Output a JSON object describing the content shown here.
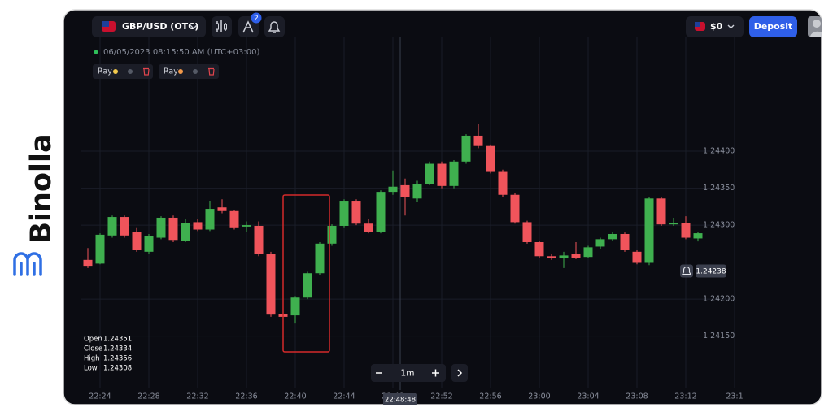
{
  "brand": "Binolla",
  "toolbar": {
    "symbol": "GBP/USD (OTC)",
    "indicator_badge": "2",
    "balance": "$0",
    "deposit": "Deposit"
  },
  "info": {
    "timestamp": "06/05/2023 08:15:50 AM",
    "timezone": "(UTC+03:00)"
  },
  "drawings": [
    {
      "label": "Ray"
    },
    {
      "label": "Ray"
    }
  ],
  "ohlc": [
    {
      "label": "Open",
      "value": "1.24351"
    },
    {
      "label": "Close",
      "value": "1.24334"
    },
    {
      "label": "High",
      "value": "1.24356"
    },
    {
      "label": "Low",
      "value": "1.24308"
    }
  ],
  "timeframe": {
    "label": "1m"
  },
  "chart_data": {
    "type": "candlestick",
    "up_color": "#3fb04f",
    "down_color": "#f0545b",
    "grid": true,
    "categories": [
      null,
      "22:24",
      null,
      null,
      null,
      "22:28",
      null,
      null,
      null,
      "22:32",
      null,
      null,
      null,
      "22:36",
      null,
      null,
      null,
      "22:40",
      null,
      null,
      null,
      "22:44",
      null,
      null,
      null,
      "22:48",
      null,
      null,
      null,
      "22:52",
      null,
      null,
      null,
      "22:56",
      null,
      null,
      null,
      "23:00",
      null,
      null,
      null,
      "23:04",
      null,
      null,
      null,
      "23:08",
      null,
      null,
      null,
      "23:12",
      null,
      null,
      null,
      "23:1"
    ],
    "open": [
      1.24253,
      1.24248,
      1.24286,
      1.24311,
      1.24291,
      1.24264,
      1.24283,
      1.2431,
      1.24279,
      1.24304,
      1.24294,
      1.24324,
      1.24319,
      1.24298,
      1.24299,
      1.24261,
      1.2418,
      1.24178,
      1.24202,
      1.24235,
      1.24275,
      1.24299,
      1.24333,
      1.24302,
      1.24291,
      1.24345,
      1.24354,
      1.24336,
      1.24356,
      1.24383,
      1.24353,
      1.24386,
      1.24421,
      1.24407,
      1.24372,
      1.24341,
      1.24304,
      1.24277,
      1.24258,
      1.24255,
      1.24261,
      1.24257,
      1.24271,
      1.24281,
      1.24288,
      1.24264,
      1.24249,
      1.24336,
      1.24301,
      1.24303,
      1.24282,
      null,
      null,
      null
    ],
    "high": [
      1.24269,
      1.24289,
      1.24313,
      1.24313,
      1.24297,
      1.24288,
      1.24312,
      1.24313,
      1.24308,
      1.24308,
      1.24333,
      1.24335,
      1.24321,
      1.24305,
      1.24305,
      1.24264,
      1.24203,
      1.24204,
      1.24237,
      1.24277,
      1.24301,
      1.24335,
      1.24335,
      1.24308,
      1.24347,
      1.24374,
      1.24363,
      1.2436,
      1.24386,
      1.24386,
      1.24388,
      1.24423,
      1.24437,
      1.24409,
      1.24375,
      1.24343,
      1.24306,
      1.24279,
      1.24261,
      1.24264,
      1.24277,
      1.24272,
      1.24283,
      1.24291,
      1.2429,
      1.24266,
      1.24338,
      1.24338,
      1.2431,
      1.24312,
      1.24291,
      null,
      null,
      null
    ],
    "low": [
      1.24242,
      1.24247,
      1.24283,
      1.24283,
      1.24264,
      1.24261,
      1.24281,
      1.24277,
      1.24277,
      1.24292,
      1.24292,
      1.24316,
      1.24294,
      1.24291,
      1.24258,
      1.24176,
      1.24173,
      1.24167,
      1.242,
      1.24233,
      1.24272,
      1.24297,
      1.243,
      1.24289,
      1.24289,
      1.24341,
      1.24313,
      1.24332,
      1.24354,
      1.2435,
      1.2435,
      1.24383,
      1.24404,
      1.2437,
      1.24338,
      1.24302,
      1.24275,
      1.24256,
      1.24253,
      1.24242,
      1.24254,
      1.24255,
      1.24268,
      1.24279,
      1.24264,
      1.24247,
      1.24246,
      1.24299,
      1.24299,
      1.24281,
      1.24278,
      null,
      null,
      null
    ],
    "close": [
      1.24245,
      1.24287,
      1.24311,
      1.24286,
      1.24266,
      1.24285,
      1.2431,
      1.2428,
      1.24303,
      1.24294,
      1.24322,
      1.24319,
      1.24297,
      1.243,
      1.24261,
      1.24179,
      1.24176,
      1.24202,
      1.24235,
      1.24275,
      1.24299,
      1.24333,
      1.24302,
      1.24291,
      1.24345,
      1.24352,
      1.24338,
      1.24356,
      1.24383,
      1.24353,
      1.24386,
      1.24421,
      1.24407,
      1.24372,
      1.24341,
      1.24304,
      1.24277,
      1.24258,
      1.24255,
      1.24259,
      1.24256,
      1.2427,
      1.24281,
      1.24288,
      1.24266,
      1.24249,
      1.24336,
      1.24301,
      1.24303,
      1.24283,
      1.24289,
      null,
      null,
      null
    ],
    "ylim": [
      1.24088,
      1.24555
    ],
    "yticks": [
      {
        "value": 1.2415,
        "label": "1.24150"
      },
      {
        "value": 1.242,
        "label": "1.24200"
      },
      {
        "value": 1.243,
        "label": "1.24300"
      },
      {
        "value": 1.2435,
        "label": "1.24350"
      },
      {
        "value": 1.244,
        "label": "1.24400"
      }
    ],
    "last_price": 1.24238,
    "crosshair_time": "22:48:48"
  }
}
